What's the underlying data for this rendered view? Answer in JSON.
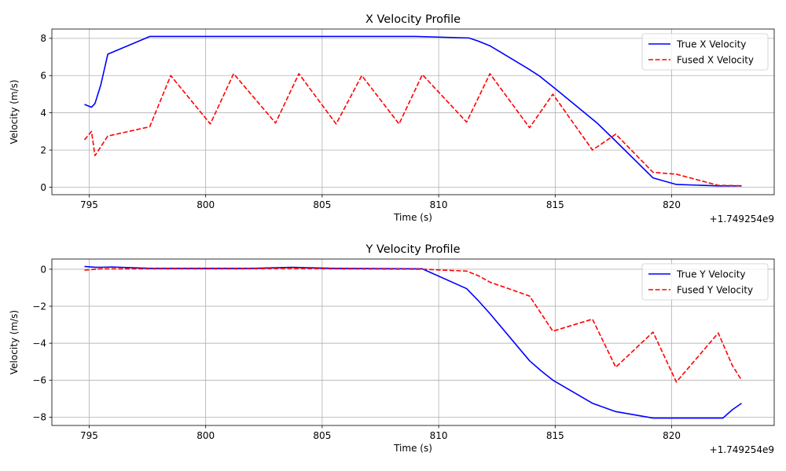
{
  "chart_data": [
    {
      "type": "line",
      "title": "X Velocity Profile",
      "xlabel": "Time (s)",
      "ylabel": "Velocity (m/s)",
      "x_offset_label": "+1.749254e9",
      "xlim": [
        793.4,
        824.4
      ],
      "ylim": [
        -0.4,
        8.5
      ],
      "xticks": [
        795,
        800,
        805,
        810,
        815,
        820
      ],
      "yticks": [
        0,
        2,
        4,
        6,
        8
      ],
      "grid": true,
      "legend": "top-right",
      "series": [
        {
          "name": "True X Velocity",
          "color": "#0000ff",
          "style": "solid",
          "points": [
            [
              794.8,
              4.45
            ],
            [
              795.1,
              4.3
            ],
            [
              795.25,
              4.5
            ],
            [
              795.5,
              5.5
            ],
            [
              795.8,
              7.15
            ],
            [
              797.6,
              8.1
            ],
            [
              809.0,
              8.1
            ],
            [
              811.3,
              8.02
            ],
            [
              811.7,
              7.85
            ],
            [
              812.2,
              7.6
            ],
            [
              813.8,
              6.4
            ],
            [
              814.3,
              6.0
            ],
            [
              815.0,
              5.3
            ],
            [
              816.8,
              3.45
            ],
            [
              817.5,
              2.6
            ],
            [
              819.2,
              0.5
            ],
            [
              820.2,
              0.15
            ],
            [
              822.0,
              0.07
            ],
            [
              823.0,
              0.07
            ]
          ]
        },
        {
          "name": "Fused X Velocity",
          "color": "#ff0000",
          "style": "dashed",
          "points": [
            [
              794.8,
              2.55
            ],
            [
              795.1,
              3.0
            ],
            [
              795.25,
              1.7
            ],
            [
              795.8,
              2.75
            ],
            [
              797.6,
              3.25
            ],
            [
              798.5,
              6.0
            ],
            [
              800.2,
              3.4
            ],
            [
              801.2,
              6.1
            ],
            [
              803.0,
              3.45
            ],
            [
              804.0,
              6.1
            ],
            [
              805.6,
              3.4
            ],
            [
              806.7,
              6.0
            ],
            [
              808.3,
              3.4
            ],
            [
              809.3,
              6.05
            ],
            [
              811.2,
              3.5
            ],
            [
              812.2,
              6.1
            ],
            [
              813.9,
              3.2
            ],
            [
              814.9,
              5.0
            ],
            [
              816.6,
              2.0
            ],
            [
              817.6,
              2.85
            ],
            [
              819.2,
              0.8
            ],
            [
              820.2,
              0.7
            ],
            [
              822.0,
              0.1
            ],
            [
              823.0,
              0.08
            ]
          ]
        }
      ]
    },
    {
      "type": "line",
      "title": "Y Velocity Profile",
      "xlabel": "Time (s)",
      "ylabel": "Velocity (m/s)",
      "x_offset_label": "+1.749254e9",
      "xlim": [
        793.4,
        824.4
      ],
      "ylim": [
        -8.45,
        0.55
      ],
      "xticks": [
        795,
        800,
        805,
        810,
        815,
        820
      ],
      "yticks": [
        0,
        -2,
        -4,
        -6,
        -8
      ],
      "grid": true,
      "legend": "top-right",
      "series": [
        {
          "name": "True Y Velocity",
          "color": "#0000ff",
          "style": "solid",
          "points": [
            [
              794.8,
              0.15
            ],
            [
              795.3,
              0.1
            ],
            [
              796.0,
              0.12
            ],
            [
              797.6,
              0.05
            ],
            [
              802.0,
              0.05
            ],
            [
              803.7,
              0.1
            ],
            [
              805.5,
              0.05
            ],
            [
              809.3,
              0.02
            ],
            [
              811.2,
              -1.05
            ],
            [
              811.7,
              -1.7
            ],
            [
              812.2,
              -2.4
            ],
            [
              813.9,
              -4.95
            ],
            [
              814.4,
              -5.5
            ],
            [
              814.9,
              -6.0
            ],
            [
              816.6,
              -7.25
            ],
            [
              817.6,
              -7.7
            ],
            [
              819.2,
              -8.05
            ],
            [
              822.2,
              -8.05
            ],
            [
              822.6,
              -7.6
            ],
            [
              823.0,
              -7.25
            ]
          ]
        },
        {
          "name": "Fused Y Velocity",
          "color": "#ff0000",
          "style": "dashed",
          "points": [
            [
              794.8,
              -0.05
            ],
            [
              795.5,
              0.02
            ],
            [
              797.6,
              0.02
            ],
            [
              801.2,
              0.02
            ],
            [
              803.7,
              0.05
            ],
            [
              805.5,
              0.02
            ],
            [
              809.3,
              0.0
            ],
            [
              811.2,
              -0.1
            ],
            [
              811.7,
              -0.35
            ],
            [
              812.2,
              -0.7
            ],
            [
              813.9,
              -1.45
            ],
            [
              814.9,
              -3.35
            ],
            [
              816.6,
              -2.7
            ],
            [
              817.6,
              -5.3
            ],
            [
              819.2,
              -3.4
            ],
            [
              820.2,
              -6.1
            ],
            [
              822.0,
              -3.45
            ],
            [
              822.6,
              -5.2
            ],
            [
              823.0,
              -6.0
            ]
          ]
        }
      ]
    }
  ]
}
